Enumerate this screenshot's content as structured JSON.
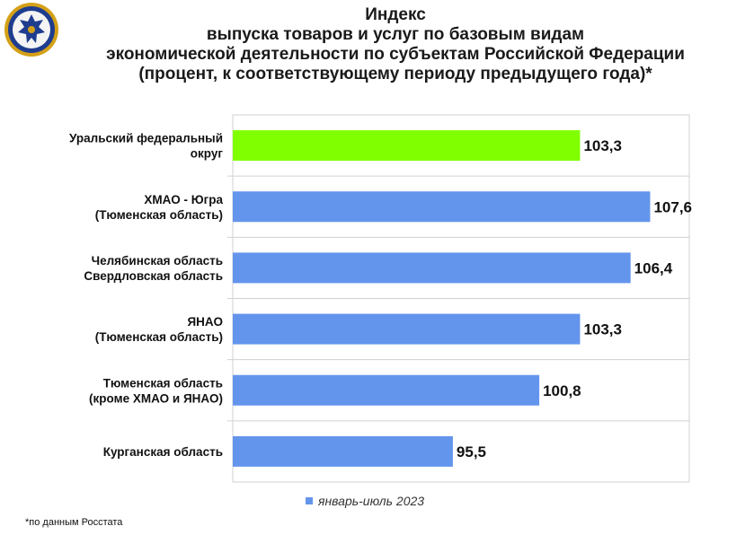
{
  "title": {
    "line1": "Индекс",
    "line2": "выпуска товаров и услуг по базовым видам",
    "line3": "экономической деятельности по субъектам Российской Федерации",
    "line4": "(процент, к соответствующему периоду предыдущего года)*"
  },
  "logo": {
    "icon": "rosstat-eagle-emblem-icon"
  },
  "legend": {
    "label": "январь-июль 2023"
  },
  "footnote": "*по данным Росстата",
  "colors": {
    "highlight": "#80ff00",
    "bar": "#6495ed",
    "grid": "#d0d0d0",
    "emblem_blue": "#1f3d8f",
    "emblem_gold": "#d4a017"
  },
  "chart_data": {
    "type": "bar",
    "orientation": "horizontal",
    "categories": [
      [
        "Уральский федеральный",
        "округ"
      ],
      [
        "ХМАО - Югра",
        "(Тюменская область)"
      ],
      [
        "Челябинская область",
        "Свердловская область"
      ],
      [
        "ЯНАО",
        "(Тюменская область)"
      ],
      [
        "Тюменская область",
        "(кроме ХМАО и ЯНАО)"
      ],
      [
        "Курганская область"
      ]
    ],
    "series": [
      {
        "name": "январь-июль 2023",
        "values": [
          103.3,
          107.6,
          106.4,
          103.3,
          100.8,
          95.5
        ]
      }
    ],
    "value_labels": [
      "103,3",
      "107,6",
      "106,4",
      "103,3",
      "100,8",
      "95,5"
    ],
    "highlighted_index": 0,
    "xlim": [
      82,
      110
    ],
    "grid": true,
    "legend_position": "bottom"
  }
}
